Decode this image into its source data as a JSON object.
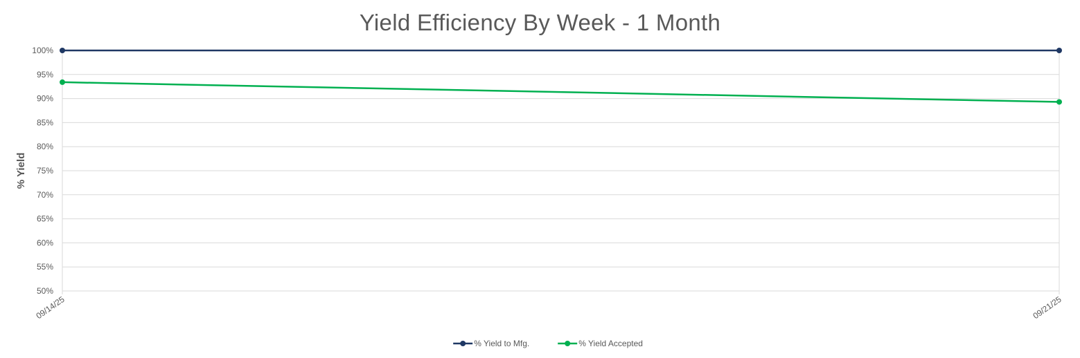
{
  "chart_data": {
    "type": "line",
    "title": "Yield Efficiency By Week - 1 Month",
    "xlabel": "",
    "ylabel": "% Yield",
    "categories": [
      "09/14/25",
      "09/21/25"
    ],
    "ylim": [
      0.5,
      1.0
    ],
    "yticks": [
      {
        "value": 1.0,
        "label": "100%"
      },
      {
        "value": 0.95,
        "label": "95%"
      },
      {
        "value": 0.9,
        "label": "90%"
      },
      {
        "value": 0.85,
        "label": "85%"
      },
      {
        "value": 0.8,
        "label": "80%"
      },
      {
        "value": 0.75,
        "label": "75%"
      },
      {
        "value": 0.7,
        "label": "70%"
      },
      {
        "value": 0.65,
        "label": "65%"
      },
      {
        "value": 0.6,
        "label": "60%"
      },
      {
        "value": 0.55,
        "label": "55%"
      },
      {
        "value": 0.5,
        "label": "50%"
      }
    ],
    "grid": true,
    "legend": "bottom-center",
    "series": [
      {
        "name": "% Yield to Mfg.",
        "color": "#1F3864",
        "values": [
          1.0,
          1.0
        ]
      },
      {
        "name": "% Yield Accepted",
        "color": "#00B050",
        "values": [
          0.934,
          0.893
        ]
      }
    ]
  }
}
